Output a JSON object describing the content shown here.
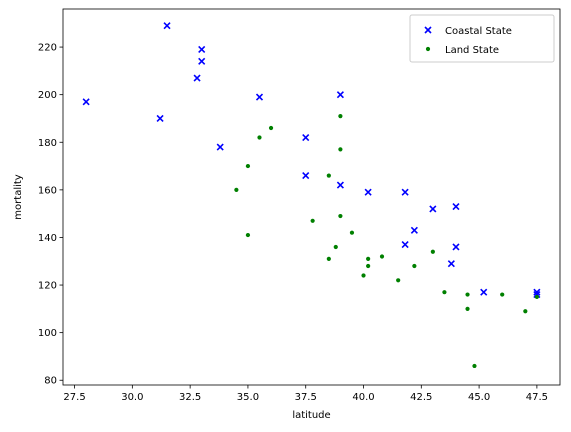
{
  "chart_data": {
    "type": "scatter",
    "title": "",
    "xlabel": "latitude",
    "ylabel": "mortality",
    "xlim": [
      27.0,
      48.5
    ],
    "ylim": [
      78,
      236
    ],
    "xticks": [
      27.5,
      30.0,
      32.5,
      35.0,
      37.5,
      40.0,
      42.5,
      45.0,
      47.5
    ],
    "xtick_labels": [
      "27.5",
      "30.0",
      "32.5",
      "35.0",
      "37.5",
      "40.0",
      "42.5",
      "45.0",
      "47.5"
    ],
    "yticks": [
      80,
      100,
      120,
      140,
      160,
      180,
      200,
      220
    ],
    "ytick_labels": [
      "80",
      "100",
      "120",
      "140",
      "160",
      "180",
      "200",
      "220"
    ],
    "grid": false,
    "legend_position": "top-right",
    "series": [
      {
        "name": "Coastal State",
        "marker": "x",
        "color": "#0000ff",
        "points": [
          [
            28.0,
            197
          ],
          [
            31.2,
            190
          ],
          [
            31.5,
            229
          ],
          [
            32.8,
            207
          ],
          [
            33.0,
            219
          ],
          [
            33.0,
            214
          ],
          [
            33.8,
            178
          ],
          [
            35.5,
            199
          ],
          [
            37.5,
            182
          ],
          [
            37.5,
            166
          ],
          [
            39.0,
            200
          ],
          [
            39.0,
            162
          ],
          [
            40.2,
            159
          ],
          [
            41.8,
            159
          ],
          [
            41.8,
            137
          ],
          [
            42.2,
            143
          ],
          [
            43.0,
            152
          ],
          [
            43.8,
            129
          ],
          [
            44.0,
            153
          ],
          [
            44.0,
            136
          ],
          [
            45.2,
            117
          ],
          [
            47.5,
            117
          ],
          [
            47.5,
            116
          ]
        ]
      },
      {
        "name": "Land State",
        "marker": "o",
        "color": "#008000",
        "points": [
          [
            34.5,
            160
          ],
          [
            35.0,
            170
          ],
          [
            35.0,
            141
          ],
          [
            35.5,
            182
          ],
          [
            36.0,
            186
          ],
          [
            37.8,
            147
          ],
          [
            38.5,
            166
          ],
          [
            38.5,
            131
          ],
          [
            38.8,
            136
          ],
          [
            39.0,
            191
          ],
          [
            39.0,
            177
          ],
          [
            39.0,
            149
          ],
          [
            39.5,
            142
          ],
          [
            40.0,
            124
          ],
          [
            40.2,
            131
          ],
          [
            40.2,
            128
          ],
          [
            40.8,
            132
          ],
          [
            41.5,
            122
          ],
          [
            42.2,
            128
          ],
          [
            43.0,
            134
          ],
          [
            43.5,
            117
          ],
          [
            44.5,
            116
          ],
          [
            44.5,
            110
          ],
          [
            44.8,
            86
          ],
          [
            46.0,
            116
          ],
          [
            47.0,
            109
          ],
          [
            47.5,
            115
          ]
        ]
      }
    ]
  }
}
